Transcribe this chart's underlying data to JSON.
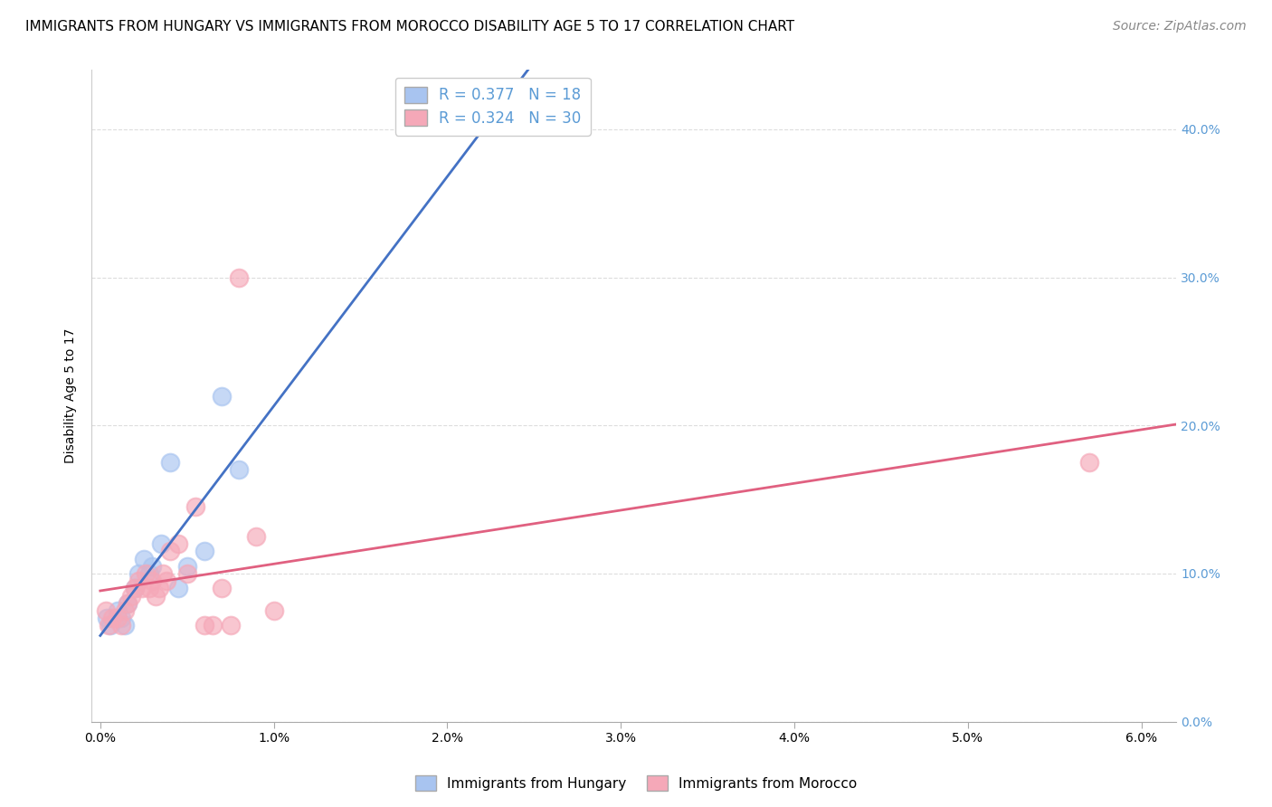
{
  "title": "IMMIGRANTS FROM HUNGARY VS IMMIGRANTS FROM MOROCCO DISABILITY AGE 5 TO 17 CORRELATION CHART",
  "source": "Source: ZipAtlas.com",
  "ylabel": "Disability Age 5 to 17",
  "ylim": [
    0.0,
    0.44
  ],
  "xlim": [
    -0.0005,
    0.062
  ],
  "legend_hungary_r": "0.377",
  "legend_hungary_n": "18",
  "legend_morocco_r": "0.324",
  "legend_morocco_n": "30",
  "hungary_color": "#A8C4F0",
  "morocco_color": "#F5A8B8",
  "hungary_line_color": "#4472C4",
  "morocco_line_color": "#E06080",
  "background_color": "#FFFFFF",
  "grid_color": "#DDDDDD",
  "right_axis_color": "#5B9BD5",
  "hungary_x": [
    0.0004,
    0.0006,
    0.001,
    0.0012,
    0.0014,
    0.0016,
    0.002,
    0.0022,
    0.0025,
    0.0028,
    0.003,
    0.0035,
    0.004,
    0.0045,
    0.005,
    0.006,
    0.007,
    0.008
  ],
  "hungary_y": [
    0.07,
    0.065,
    0.075,
    0.07,
    0.065,
    0.08,
    0.09,
    0.1,
    0.11,
    0.1,
    0.105,
    0.12,
    0.175,
    0.09,
    0.105,
    0.115,
    0.22,
    0.17
  ],
  "morocco_x": [
    0.0003,
    0.0005,
    0.0007,
    0.001,
    0.0012,
    0.0014,
    0.0016,
    0.0018,
    0.002,
    0.0022,
    0.0024,
    0.0026,
    0.0028,
    0.003,
    0.0032,
    0.0034,
    0.0036,
    0.0038,
    0.004,
    0.0045,
    0.005,
    0.0055,
    0.006,
    0.0065,
    0.007,
    0.0075,
    0.008,
    0.009,
    0.01,
    0.057
  ],
  "morocco_y": [
    0.075,
    0.065,
    0.07,
    0.07,
    0.065,
    0.075,
    0.08,
    0.085,
    0.09,
    0.095,
    0.09,
    0.1,
    0.09,
    0.095,
    0.085,
    0.09,
    0.1,
    0.095,
    0.115,
    0.12,
    0.1,
    0.145,
    0.065,
    0.065,
    0.09,
    0.065,
    0.3,
    0.125,
    0.075,
    0.175
  ],
  "xtick_positions": [
    0.0,
    0.01,
    0.02,
    0.03,
    0.04,
    0.05,
    0.06
  ],
  "xtick_labels": [
    "0.0%",
    "1.0%",
    "2.0%",
    "3.0%",
    "4.0%",
    "5.0%",
    "6.0%"
  ],
  "ytick_positions": [
    0.0,
    0.1,
    0.2,
    0.3,
    0.4
  ],
  "ytick_labels": [
    "0.0%",
    "10.0%",
    "20.0%",
    "30.0%",
    "40.0%"
  ],
  "title_fontsize": 11,
  "tick_fontsize": 10,
  "legend_fontsize": 12,
  "source_fontsize": 10
}
